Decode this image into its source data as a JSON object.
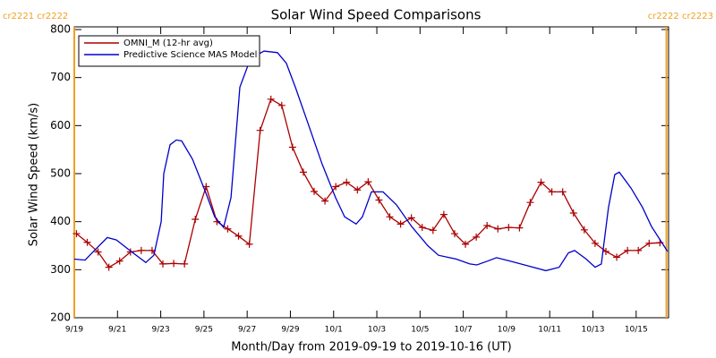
{
  "chart_data": {
    "type": "line",
    "title": "Solar Wind Speed Comparisons",
    "xlabel": "Month/Day from 2019-09-19 to 2019-10-16 (UT)",
    "ylabel": "Solar Wind Speed (km/s)",
    "xlim": [
      0,
      27.5
    ],
    "ylim": [
      200,
      800
    ],
    "yticks": [
      200,
      300,
      400,
      500,
      600,
      700,
      800
    ],
    "xticks": [
      {
        "value": 0,
        "label": "9/19"
      },
      {
        "value": 2,
        "label": "9/21"
      },
      {
        "value": 4,
        "label": "9/23"
      },
      {
        "value": 6,
        "label": "9/25"
      },
      {
        "value": 8,
        "label": "9/27"
      },
      {
        "value": 10,
        "label": "9/29"
      },
      {
        "value": 12,
        "label": "10/1"
      },
      {
        "value": 14,
        "label": "10/3"
      },
      {
        "value": 16,
        "label": "10/5"
      },
      {
        "value": 18,
        "label": "10/7"
      },
      {
        "value": 20,
        "label": "10/9"
      },
      {
        "value": 22,
        "label": "10/11"
      },
      {
        "value": 24,
        "label": "10/13"
      },
      {
        "value": 26,
        "label": "10/15"
      }
    ],
    "legend": "upper left",
    "annotations": [
      {
        "label": "cr2221 cr2222",
        "x": 0,
        "color": "#f0a020"
      },
      {
        "label": "cr2222 cr2223",
        "x": 27.4,
        "color": "#f0a020"
      }
    ],
    "series": [
      {
        "name": "OMNI_M (12-hr avg)",
        "color": "#aa0000",
        "marker": "+",
        "x": [
          0.1,
          0.6,
          1.1,
          1.6,
          2.1,
          2.6,
          3.1,
          3.6,
          4.1,
          4.6,
          5.1,
          5.6,
          6.1,
          6.6,
          7.1,
          7.6,
          8.1,
          8.6,
          9.1,
          9.6,
          10.1,
          10.6,
          11.1,
          11.6,
          12.1,
          12.6,
          13.1,
          13.6,
          14.1,
          14.6,
          15.1,
          15.6,
          16.1,
          16.6,
          17.1,
          17.6,
          18.1,
          18.6,
          19.1,
          19.6,
          20.1,
          20.6,
          21.1,
          21.6,
          22.1,
          22.6,
          23.1,
          23.6,
          24.1,
          24.6,
          25.1,
          25.6,
          26.1,
          26.6,
          27.1
        ],
        "values": [
          375,
          357,
          337,
          305,
          318,
          337,
          340,
          340,
          312,
          313,
          312,
          405,
          473,
          400,
          385,
          370,
          353,
          590,
          655,
          642,
          555,
          503,
          463,
          443,
          473,
          482,
          466,
          483,
          445,
          410,
          395,
          408,
          388,
          382,
          415,
          375,
          353,
          368,
          392,
          385,
          388,
          387,
          440,
          482,
          462,
          462,
          418,
          383,
          355,
          338,
          326,
          340,
          340,
          355,
          356
        ]
      },
      {
        "name": "Predictive Science MAS Model",
        "color": "#0000cc",
        "x": [
          0,
          0.5,
          1.04,
          1.53,
          1.95,
          2.57,
          3.31,
          3.68,
          4.02,
          4.14,
          4.43,
          4.72,
          4.97,
          5.47,
          6.09,
          6.5,
          6.91,
          7.25,
          7.66,
          8.16,
          8.78,
          9.4,
          9.81,
          10.23,
          10.85,
          11.47,
          12.09,
          12.51,
          13.04,
          13.33,
          13.75,
          14.29,
          14.91,
          15.61,
          16.36,
          16.85,
          17.68,
          18.3,
          18.63,
          19.13,
          19.54,
          20.17,
          20.99,
          21.82,
          22.44,
          22.86,
          23.15,
          23.69,
          24.1,
          24.39,
          24.72,
          25.01,
          25.22,
          25.76,
          26.29,
          26.71,
          27.45
        ],
        "values": [
          322,
          320,
          345,
          367,
          362,
          340,
          315,
          330,
          400,
          500,
          560,
          570,
          568,
          530,
          460,
          410,
          388,
          450,
          680,
          740,
          755,
          752,
          730,
          680,
          600,
          520,
          450,
          410,
          395,
          410,
          462,
          462,
          435,
          390,
          350,
          330,
          322,
          312,
          310,
          318,
          325,
          318,
          308,
          298,
          305,
          335,
          340,
          322,
          305,
          312,
          430,
          498,
          503,
          470,
          430,
          390,
          338
        ]
      }
    ]
  }
}
